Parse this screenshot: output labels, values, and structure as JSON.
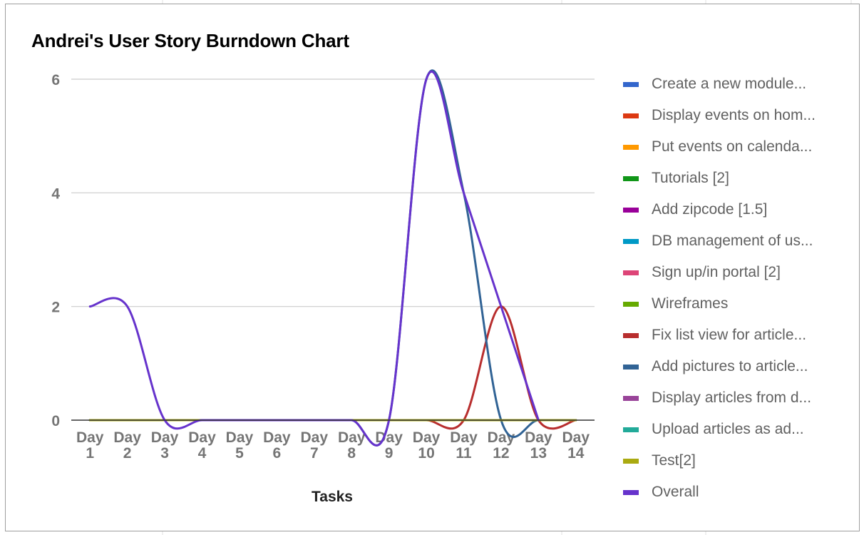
{
  "chart_data": {
    "type": "line",
    "title": "Andrei's User Story Burndown Chart",
    "xlabel": "Tasks",
    "ylabel": "",
    "ylim": [
      0,
      6
    ],
    "yticks": [
      0,
      2,
      4,
      6
    ],
    "grid": true,
    "legend_position": "right",
    "categories": [
      [
        "Day",
        "1"
      ],
      [
        "Day",
        "2"
      ],
      [
        "Day",
        "3"
      ],
      [
        "Day",
        "4"
      ],
      [
        "Day",
        "5"
      ],
      [
        "Day",
        "6"
      ],
      [
        "Day",
        "7"
      ],
      [
        "Day",
        "8"
      ],
      [
        "Day",
        "9"
      ],
      [
        "Day",
        "10"
      ],
      [
        "Day",
        "11"
      ],
      [
        "Day",
        "12"
      ],
      [
        "Day",
        "13"
      ],
      [
        "Day",
        "14"
      ]
    ],
    "series": [
      {
        "name": "Create a new module...",
        "color": "#3366cc",
        "values": [
          0,
          0,
          0,
          0,
          0,
          0,
          0,
          0,
          0,
          0,
          0,
          0,
          0,
          0
        ]
      },
      {
        "name": "Display events on hom...",
        "color": "#dc3912",
        "values": [
          0,
          0,
          0,
          0,
          0,
          0,
          0,
          0,
          0,
          0,
          0,
          0,
          0,
          0
        ]
      },
      {
        "name": "Put events on calenda...",
        "color": "#ff9900",
        "values": [
          0,
          0,
          0,
          0,
          0,
          0,
          0,
          0,
          0,
          0,
          0,
          0,
          0,
          0
        ]
      },
      {
        "name": "Tutorials [2]",
        "color": "#109618",
        "values": [
          0,
          0,
          0,
          0,
          0,
          0,
          0,
          0,
          0,
          0,
          0,
          0,
          0,
          0
        ]
      },
      {
        "name": "Add zipcode [1.5]",
        "color": "#990099",
        "values": [
          0,
          0,
          0,
          0,
          0,
          0,
          0,
          0,
          0,
          0,
          0,
          0,
          0,
          0
        ]
      },
      {
        "name": "DB management of us...",
        "color": "#0099c6",
        "values": [
          0,
          0,
          0,
          0,
          0,
          0,
          0,
          0,
          0,
          0,
          0,
          0,
          0,
          0
        ]
      },
      {
        "name": "Sign up/in portal [2]",
        "color": "#dd4477",
        "values": [
          0,
          0,
          0,
          0,
          0,
          0,
          0,
          0,
          0,
          0,
          0,
          0,
          0,
          0
        ]
      },
      {
        "name": "Wireframes",
        "color": "#66aa00",
        "values": [
          0,
          0,
          0,
          0,
          0,
          0,
          0,
          0,
          0,
          0,
          0,
          0,
          0,
          0
        ]
      },
      {
        "name": "Fix list view for article...",
        "color": "#b82e2e",
        "values": [
          0,
          0,
          0,
          0,
          0,
          0,
          0,
          0,
          0,
          0,
          0,
          2,
          0,
          0
        ]
      },
      {
        "name": "Add pictures to article...",
        "color": "#316395",
        "values": [
          0,
          0,
          0,
          0,
          0,
          0,
          0,
          0,
          0,
          6,
          4,
          0,
          0,
          0
        ]
      },
      {
        "name": "Display articles from d...",
        "color": "#994499",
        "values": [
          0,
          0,
          0,
          0,
          0,
          0,
          0,
          0,
          0,
          0,
          0,
          0,
          0,
          0
        ]
      },
      {
        "name": "Upload articles as ad...",
        "color": "#22aa99",
        "values": [
          0,
          0,
          0,
          0,
          0,
          0,
          0,
          0,
          0,
          0,
          0,
          0,
          0,
          0
        ]
      },
      {
        "name": "Test[2]",
        "color": "#aaaa11",
        "values": [
          0,
          0,
          0,
          0,
          0,
          0,
          0,
          0,
          0,
          0,
          0,
          0,
          0,
          0
        ]
      },
      {
        "name": "Overall",
        "color": "#6633cc",
        "values": [
          2,
          2,
          0,
          0,
          0,
          0,
          0,
          0,
          0,
          6,
          4,
          2,
          0,
          null
        ]
      }
    ]
  }
}
